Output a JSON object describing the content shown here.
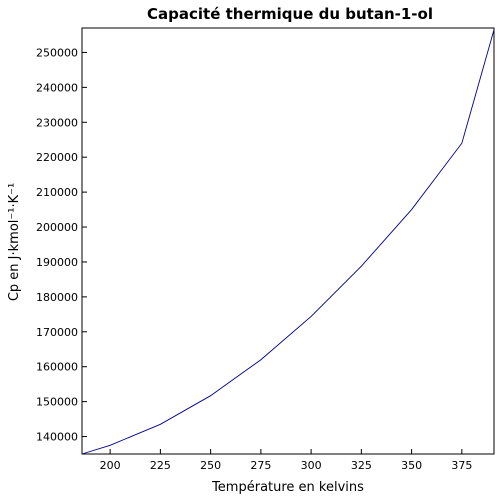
{
  "chart_data": {
    "type": "line",
    "title": "Capacité thermique du butan-1-ol",
    "xlabel": "Température en kelvins",
    "ylabel": "Cp en J·kmol⁻¹·K⁻¹",
    "xlim": [
      186,
      391
    ],
    "ylim": [
      135000,
      257000
    ],
    "x_ticks": [
      200,
      225,
      250,
      275,
      300,
      325,
      350,
      375
    ],
    "y_ticks": [
      140000,
      150000,
      160000,
      170000,
      180000,
      190000,
      200000,
      210000,
      220000,
      230000,
      240000,
      250000
    ],
    "grid": false,
    "series": [
      {
        "color": "#00008b",
        "x": [
          186,
          200,
          225,
          250,
          275,
          300,
          325,
          350,
          375,
          391
        ],
        "y": [
          135000,
          137500,
          143500,
          151700,
          162000,
          174400,
          188800,
          205000,
          224000,
          256500
        ]
      }
    ]
  }
}
